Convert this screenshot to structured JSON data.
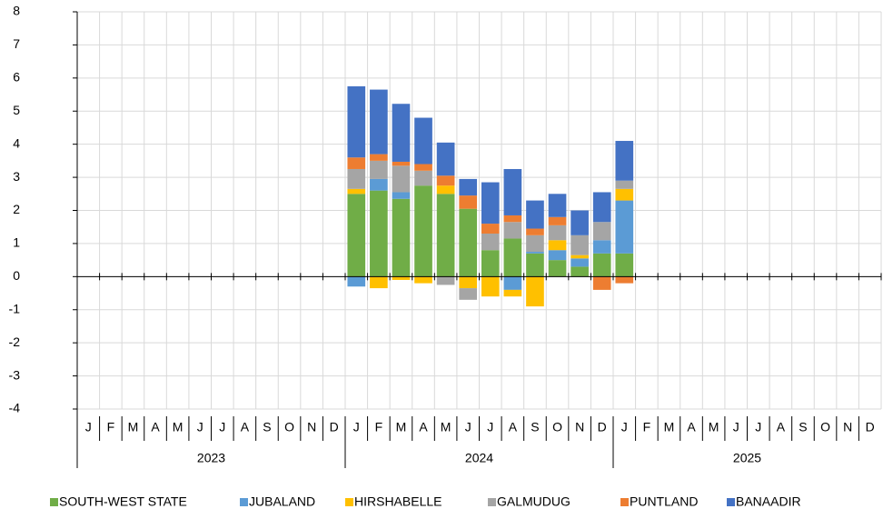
{
  "chart_data": {
    "type": "stacked-bar",
    "categories": [
      "J",
      "F",
      "M",
      "A",
      "M",
      "J",
      "J",
      "A",
      "S",
      "O",
      "N",
      "D",
      "J",
      "F",
      "M",
      "A",
      "M",
      "J",
      "J",
      "A",
      "S",
      "O",
      "N",
      "D",
      "J",
      "F",
      "M",
      "A",
      "M",
      "J",
      "J",
      "A",
      "S",
      "O",
      "N",
      "D"
    ],
    "years": [
      "2023",
      "2024",
      "2025"
    ],
    "series": [
      {
        "name": "SOUTH-WEST STATE",
        "color": "#70ad47",
        "values": [
          null,
          null,
          null,
          null,
          null,
          null,
          null,
          null,
          null,
          null,
          null,
          null,
          2.5,
          2.6,
          2.35,
          2.75,
          2.5,
          2.05,
          0.8,
          1.15,
          0.7,
          0.5,
          0.3,
          0.7,
          0.7,
          null,
          null,
          null,
          null,
          null,
          null,
          null,
          null,
          null,
          null,
          null
        ]
      },
      {
        "name": "JUBALAND",
        "color": "#5b9bd5",
        "values": [
          null,
          null,
          null,
          null,
          null,
          null,
          null,
          null,
          null,
          null,
          null,
          null,
          -0.3,
          0.35,
          0.2,
          null,
          null,
          null,
          null,
          -0.4,
          0.05,
          0.3,
          0.25,
          0.4,
          1.6,
          null,
          null,
          null,
          null,
          null,
          null,
          null,
          null,
          null,
          null,
          null
        ]
      },
      {
        "name": "HIRSHABELLE",
        "color": "#ffc000",
        "values": [
          null,
          null,
          null,
          null,
          null,
          null,
          null,
          null,
          null,
          null,
          null,
          null,
          0.15,
          -0.35,
          -0.1,
          -0.2,
          0.25,
          -0.35,
          -0.6,
          -0.2,
          -0.9,
          0.3,
          0.1,
          null,
          0.35,
          null,
          null,
          null,
          null,
          null,
          null,
          null,
          null,
          null,
          null,
          null
        ]
      },
      {
        "name": "GALMUDUG",
        "color": "#a5a5a5",
        "values": [
          null,
          null,
          null,
          null,
          null,
          null,
          null,
          null,
          null,
          null,
          null,
          null,
          0.6,
          0.55,
          0.8,
          0.45,
          -0.25,
          -0.35,
          0.5,
          0.5,
          0.5,
          0.45,
          0.6,
          0.55,
          0.25,
          null,
          null,
          null,
          null,
          null,
          null,
          null,
          null,
          null,
          null,
          null
        ]
      },
      {
        "name": "PUNTLAND",
        "color": "#ed7d31",
        "values": [
          null,
          null,
          null,
          null,
          null,
          null,
          null,
          null,
          null,
          null,
          null,
          null,
          0.35,
          0.2,
          0.12,
          0.2,
          0.3,
          0.4,
          0.3,
          0.2,
          0.2,
          0.25,
          null,
          -0.4,
          -0.2,
          null,
          null,
          null,
          null,
          null,
          null,
          null,
          null,
          null,
          null,
          null
        ]
      },
      {
        "name": "BANAADIR",
        "color": "#4472c4",
        "values": [
          null,
          null,
          null,
          null,
          null,
          null,
          null,
          null,
          null,
          null,
          null,
          null,
          2.15,
          1.95,
          1.75,
          1.4,
          1.0,
          0.5,
          1.25,
          1.4,
          0.85,
          0.7,
          0.75,
          0.9,
          1.2,
          null,
          null,
          null,
          null,
          null,
          null,
          null,
          null,
          null,
          null,
          null
        ]
      }
    ],
    "ylim": [
      -4,
      8
    ],
    "yticks": [
      -4,
      -3,
      -2,
      -1,
      0,
      1,
      2,
      3,
      4,
      5,
      6,
      7,
      8
    ],
    "grid": true
  }
}
